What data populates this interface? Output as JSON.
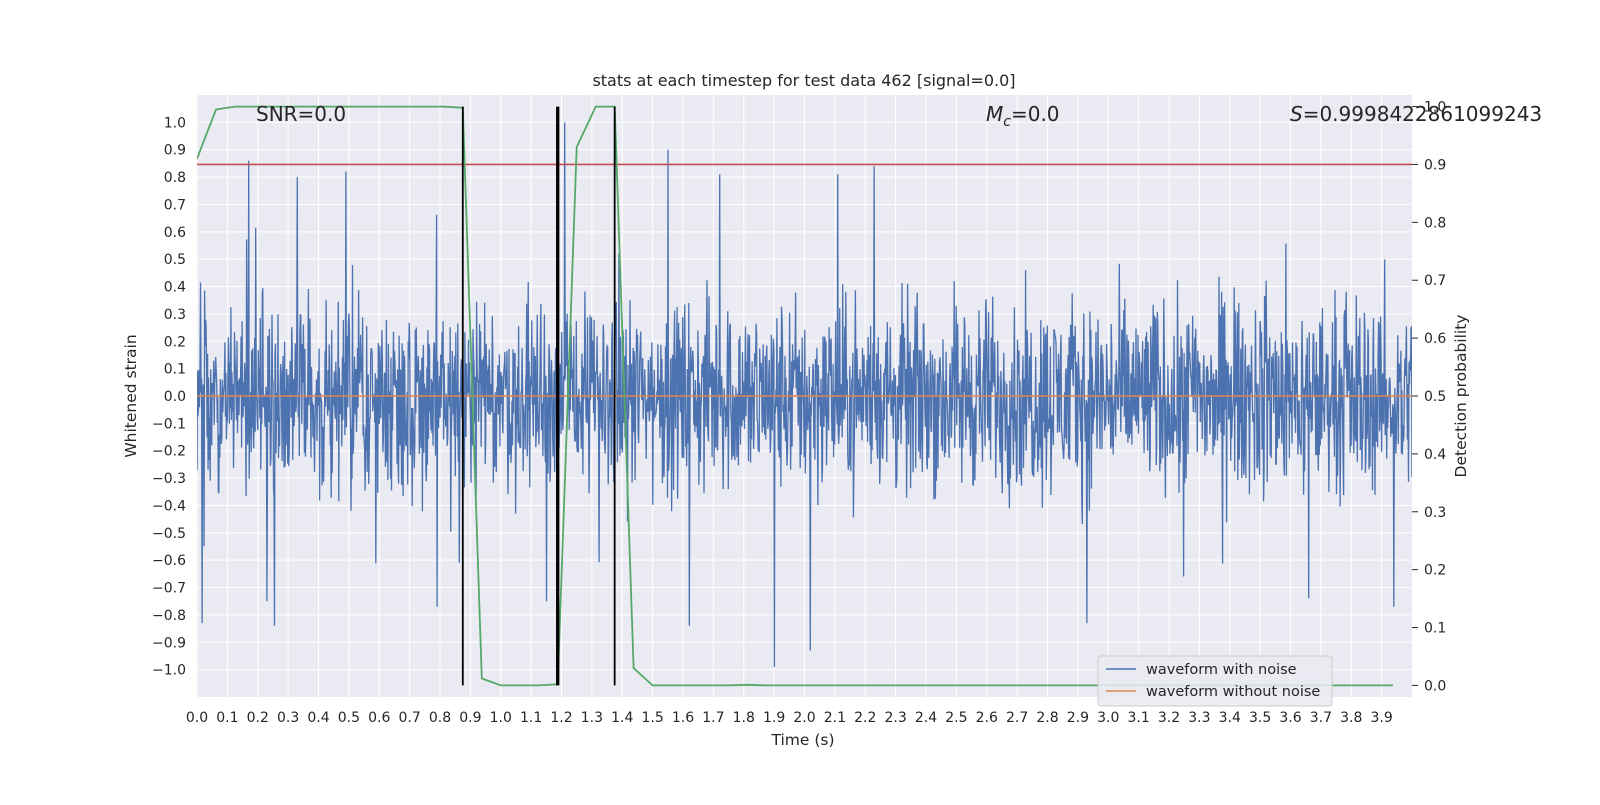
{
  "chart_data": {
    "type": "line",
    "title": "stats at each timestep for test data 462 [signal=0.0]",
    "xlabel": "Time (s)",
    "ylabel_left": "Whitened strain",
    "ylabel_right": "Detection probability",
    "xlim": [
      0.0,
      4.0
    ],
    "ylim_left": [
      -1.1,
      1.1
    ],
    "ylim_right": [
      -0.02,
      1.02
    ],
    "x_ticks": [
      "0.0",
      "0.1",
      "0.2",
      "0.3",
      "0.4",
      "0.5",
      "0.6",
      "0.7",
      "0.8",
      "0.9",
      "1.0",
      "1.1",
      "1.2",
      "1.3",
      "1.4",
      "1.5",
      "1.6",
      "1.7",
      "1.8",
      "1.9",
      "2.0",
      "2.1",
      "2.2",
      "2.3",
      "2.4",
      "2.5",
      "2.6",
      "2.7",
      "2.8",
      "2.9",
      "3.0",
      "3.1",
      "3.2",
      "3.3",
      "3.4",
      "3.5",
      "3.6",
      "3.7",
      "3.8",
      "3.9"
    ],
    "y_ticks_left": [
      "-1.0",
      "-0.9",
      "-0.8",
      "-0.7",
      "-0.6",
      "-0.5",
      "-0.4",
      "-0.3",
      "-0.2",
      "-0.1",
      "0.0",
      "0.1",
      "0.2",
      "0.3",
      "0.4",
      "0.5",
      "0.6",
      "0.7",
      "0.8",
      "0.9",
      "1.0"
    ],
    "y_ticks_left_display": [
      "−1.0",
      "−0.9",
      "−0.8",
      "−0.7",
      "−0.6",
      "−0.5",
      "−0.4",
      "−0.3",
      "−0.2",
      "−0.1",
      "0.0",
      "0.1",
      "0.2",
      "0.3",
      "0.4",
      "0.5",
      "0.6",
      "0.7",
      "0.8",
      "0.9",
      "1.0"
    ],
    "y_ticks_right": [
      "0.0",
      "0.1",
      "0.2",
      "0.3",
      "0.4",
      "0.5",
      "0.6",
      "0.7",
      "0.8",
      "0.9",
      "1.0"
    ],
    "grid": true,
    "legend_position": "lower-right",
    "annotations": {
      "snr": "SNR=0.0",
      "mc_symbol": "M",
      "mc_sub": "c",
      "mc_value": "=0.0",
      "s_symbol": "S",
      "s_value": "=0.9998422861099243"
    },
    "series": [
      {
        "name": "waveform with noise",
        "axis": "left",
        "color": "#4c72b0",
        "kind": "noise",
        "amplitude_typical": [
          -0.55,
          0.55
        ],
        "peaks": [
          {
            "x": 0.016,
            "y": -0.83
          },
          {
            "x": 0.17,
            "y": 0.86
          },
          {
            "x": 0.23,
            "y": -0.75
          },
          {
            "x": 0.255,
            "y": -0.84
          },
          {
            "x": 0.33,
            "y": 0.8
          },
          {
            "x": 0.49,
            "y": 0.82
          },
          {
            "x": 0.79,
            "y": -0.77
          },
          {
            "x": 1.15,
            "y": -0.75
          },
          {
            "x": 1.21,
            "y": 1.0
          },
          {
            "x": 1.55,
            "y": 0.9
          },
          {
            "x": 1.62,
            "y": -0.84
          },
          {
            "x": 1.72,
            "y": 0.81
          },
          {
            "x": 1.9,
            "y": -0.99
          },
          {
            "x": 2.02,
            "y": -0.93
          },
          {
            "x": 2.11,
            "y": 0.81
          },
          {
            "x": 2.23,
            "y": 0.84
          },
          {
            "x": 2.93,
            "y": -0.83
          },
          {
            "x": 3.66,
            "y": -0.74
          },
          {
            "x": 3.94,
            "y": -0.77
          }
        ]
      },
      {
        "name": "waveform without noise",
        "axis": "left",
        "color": "#dd8452",
        "x": [
          0.0,
          4.0
        ],
        "y": [
          0.0,
          0.0
        ]
      },
      {
        "name": "",
        "axis": "right",
        "color": "#55a868",
        "x": [
          0.0,
          0.0625,
          0.125,
          0.1875,
          0.25,
          0.3125,
          0.375,
          0.4375,
          0.5,
          0.5625,
          0.625,
          0.6875,
          0.75,
          0.8125,
          0.875,
          0.9375,
          1.0,
          1.0625,
          1.125,
          1.1875,
          1.25,
          1.3125,
          1.375,
          1.4375,
          1.5,
          1.5625,
          1.625,
          1.6875,
          1.75,
          1.8125,
          1.875,
          1.9375,
          2.0,
          2.0625,
          2.125,
          2.1875,
          2.25,
          2.3125,
          2.375,
          2.4375,
          2.5,
          2.5625,
          2.625,
          2.6875,
          2.75,
          2.8125,
          2.875,
          2.9375,
          3.0,
          3.0625,
          3.125,
          3.1875,
          3.25,
          3.3125,
          3.375,
          3.4375,
          3.5,
          3.5625,
          3.625,
          3.6875,
          3.75,
          3.8125,
          3.875,
          3.9375
        ],
        "y": [
          0.91,
          0.995,
          1.0,
          1.0,
          1.0,
          1.0,
          1.0,
          1.0,
          1.0,
          1.0,
          1.0,
          1.0,
          1.0,
          1.0,
          0.998,
          0.012,
          0.0,
          0.0,
          0.0,
          0.002,
          0.93,
          1.0,
          1.0,
          0.03,
          0.0,
          0.0,
          0.0,
          0.0,
          0.0,
          0.001,
          0.0,
          0.0,
          0.0,
          0.0,
          0.0,
          0.0,
          0.0,
          0.0,
          0.0,
          0.0,
          0.0,
          0.0,
          0.0,
          0.0,
          0.0,
          0.0,
          0.0,
          0.0,
          0.0,
          0.0,
          0.0,
          0.0,
          0.0,
          0.0,
          0.0,
          0.0,
          0.0,
          0.0,
          0.0,
          0.0,
          0.0,
          0.0,
          0.0,
          0.0
        ]
      }
    ],
    "threshold_line": {
      "axis": "right",
      "y": 0.9,
      "color": "#c44e52"
    },
    "vertical_lines": {
      "color": "#000000",
      "x": [
        0.875,
        1.185,
        1.19,
        1.375
      ],
      "y_range": [
        0.0,
        1.0
      ]
    }
  }
}
